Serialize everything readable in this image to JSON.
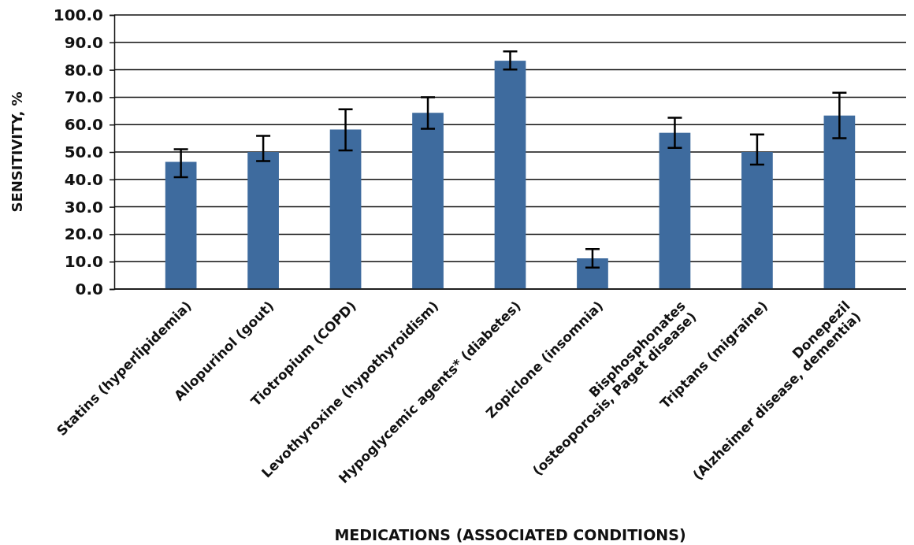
{
  "chart_data": {
    "type": "bar",
    "xlabel": "MEDICATIONS (ASSOCIATED CONDITIONS)",
    "ylabel": "SENSITIVITY, %",
    "categories": [
      "Statins (hyperlipidemia)",
      "Allopurinol (gout)",
      "Tiotropium (COPD)",
      "Levothyroxine (hypothyroidism)",
      "Hypoglycemic agents* (diabetes)",
      "Zopiclone (insomnia)",
      "Bisphosphonates\n(osteoporosis, Paget disease)",
      "Triptans (migraine)",
      "Donepezil\n(Alzheimer disease, dementia)"
    ],
    "values": [
      46.4,
      50.0,
      58.2,
      64.3,
      83.3,
      11.2,
      57.0,
      50.0,
      63.3
    ],
    "errors": [
      [
        40.8,
        51.0
      ],
      [
        46.7,
        55.9
      ],
      [
        50.6,
        65.6
      ],
      [
        58.5,
        70.0
      ],
      [
        80.1,
        86.7
      ],
      [
        7.8,
        14.6
      ],
      [
        51.5,
        62.5
      ],
      [
        45.4,
        56.4
      ],
      [
        55.0,
        71.6
      ]
    ],
    "color": "#3e6b9e",
    "ylim": [
      0,
      100
    ],
    "yticks": [
      {
        "value": 0,
        "label": "0.0"
      },
      {
        "value": 10,
        "label": "10.0"
      },
      {
        "value": 20,
        "label": "20.0"
      },
      {
        "value": 30,
        "label": "30.0"
      },
      {
        "value": 40,
        "label": "40.0"
      },
      {
        "value": 50,
        "label": "50.0"
      },
      {
        "value": 60,
        "label": "60.0"
      },
      {
        "value": 70,
        "label": "70.0"
      },
      {
        "value": 80,
        "label": "80.0"
      },
      {
        "value": 90,
        "label": "90.0"
      },
      {
        "value": 100,
        "label": "100.0"
      }
    ],
    "grid": "y"
  }
}
